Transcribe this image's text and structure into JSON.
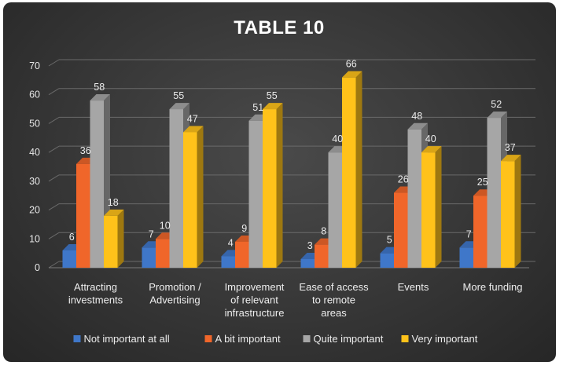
{
  "chart_data": {
    "type": "bar",
    "title": "TABLE 10",
    "categories": [
      [
        "Attracting",
        "investments"
      ],
      [
        "Promotion /",
        "Advertising"
      ],
      [
        "Improvement",
        "of relevant",
        "infrastructure"
      ],
      [
        "Ease of access",
        "to remote",
        "areas"
      ],
      [
        "Events"
      ],
      [
        "More funding"
      ]
    ],
    "series": [
      {
        "name": "Not important at all",
        "color": "#3f77c9",
        "values": [
          6,
          7,
          4,
          3,
          5,
          7
        ]
      },
      {
        "name": "A bit important",
        "color": "#f0662a",
        "values": [
          36,
          10,
          9,
          8,
          26,
          25
        ]
      },
      {
        "name": "Quite important",
        "color": "#a6a6a6",
        "values": [
          58,
          55,
          51,
          40,
          48,
          52
        ]
      },
      {
        "name": "Very important",
        "color": "#ffc21a",
        "values": [
          18,
          47,
          55,
          66,
          40,
          37
        ]
      }
    ],
    "ylim": [
      0,
      70
    ],
    "yticks": [
      0,
      10,
      20,
      30,
      40,
      50,
      60,
      70
    ],
    "grid": true,
    "legend_position": "bottom",
    "style": "3d-clustered-column"
  }
}
